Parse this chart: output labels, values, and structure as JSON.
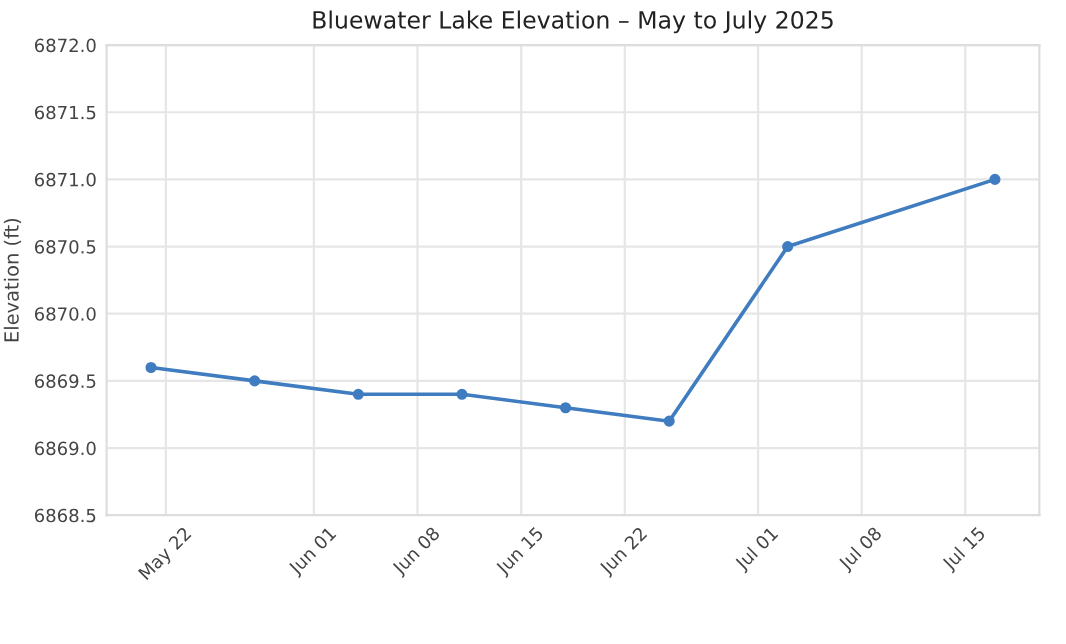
{
  "chart_data": {
    "type": "line",
    "title": "Bluewater Lake Elevation – May to July 2025",
    "ylabel": "Elevation (ft)",
    "x": [
      "2025-05-21",
      "2025-05-28",
      "2025-06-04",
      "2025-06-11",
      "2025-06-18",
      "2025-06-25",
      "2025-07-03",
      "2025-07-17"
    ],
    "series": [
      {
        "color": "#3f7cc0",
        "values": [
          6869.6,
          6869.5,
          6869.4,
          6869.4,
          6869.3,
          6869.2,
          6870.5,
          6871.0
        ]
      }
    ],
    "xlim": [
      "2025-05-18",
      "2025-07-20"
    ],
    "xticks": [
      {
        "value": "2025-05-22",
        "label": "May 22"
      },
      {
        "value": "2025-06-01",
        "label": "Jun 01"
      },
      {
        "value": "2025-06-08",
        "label": "Jun 08"
      },
      {
        "value": "2025-06-15",
        "label": "Jun 15"
      },
      {
        "value": "2025-06-22",
        "label": "Jun 22"
      },
      {
        "value": "2025-07-01",
        "label": "Jul 01"
      },
      {
        "value": "2025-07-08",
        "label": "Jul 08"
      },
      {
        "value": "2025-07-15",
        "label": "Jul 15"
      }
    ],
    "ylim": [
      6868.5,
      6872.0
    ],
    "yticks": [
      {
        "value": 6868.5,
        "label": "6868.5"
      },
      {
        "value": 6869.0,
        "label": "6869.0"
      },
      {
        "value": 6869.5,
        "label": "6869.5"
      },
      {
        "value": 6870.0,
        "label": "6870.0"
      },
      {
        "value": 6870.5,
        "label": "6870.5"
      },
      {
        "value": 6871.0,
        "label": "6871.0"
      },
      {
        "value": 6871.5,
        "label": "6871.5"
      },
      {
        "value": 6872.0,
        "label": "6872.0"
      }
    ],
    "grid": true,
    "marker": "circle",
    "line_style": "solid"
  }
}
